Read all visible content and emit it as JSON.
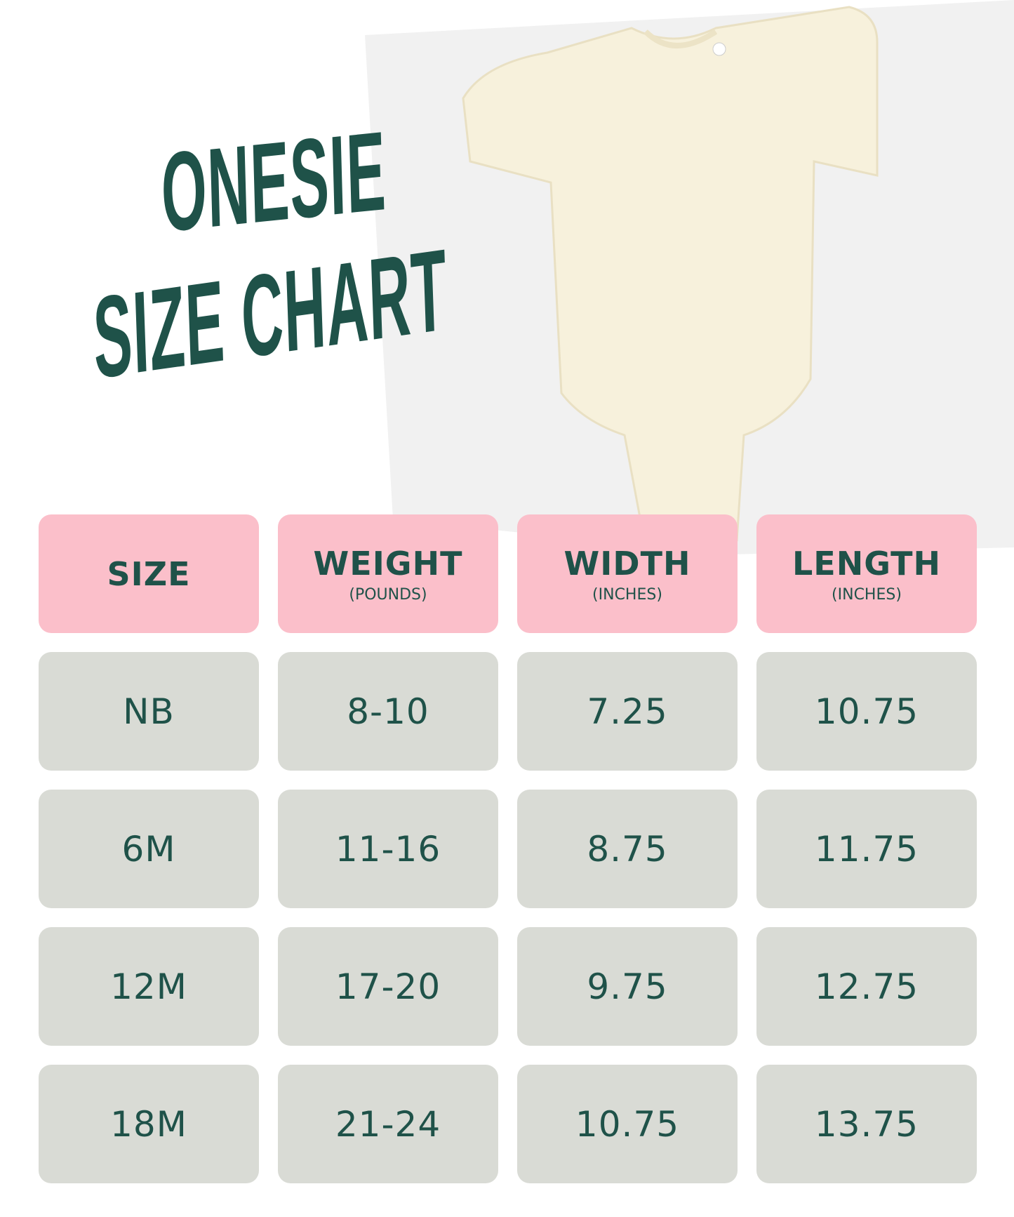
{
  "title": {
    "line1": "ONESIE",
    "line2": "SIZE CHART"
  },
  "colors": {
    "text": "#1f5249",
    "header_bg": "#fbbfca",
    "cell_bg": "#d9dbd5",
    "onesie": "#f7f1dc"
  },
  "table": {
    "headers": [
      {
        "label": "SIZE",
        "unit": ""
      },
      {
        "label": "WEIGHT",
        "unit": "(POUNDS)"
      },
      {
        "label": "WIDTH",
        "unit": "(INCHES)"
      },
      {
        "label": "LENGTH",
        "unit": "(INCHES)"
      }
    ],
    "rows": [
      [
        "NB",
        "8-10",
        "7.25",
        "10.75"
      ],
      [
        "6M",
        "11-16",
        "8.75",
        "11.75"
      ],
      [
        "12M",
        "17-20",
        "9.75",
        "12.75"
      ],
      [
        "18M",
        "21-24",
        "10.75",
        "13.75"
      ]
    ]
  }
}
